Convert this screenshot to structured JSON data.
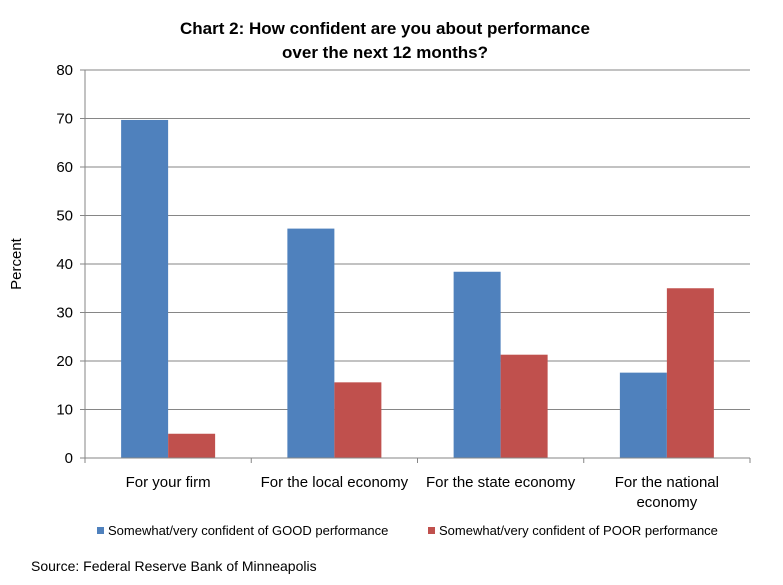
{
  "chart_data": {
    "type": "bar",
    "title_lines": [
      "Chart 2: How confident are you about performance",
      "over the next 12 months?"
    ],
    "xlabel": "",
    "ylabel": "Percent",
    "ylim": [
      0,
      80
    ],
    "yticks": [
      0,
      10,
      20,
      30,
      40,
      50,
      60,
      70,
      80
    ],
    "grid": true,
    "legend_position": "bottom",
    "categories": [
      [
        "For your firm"
      ],
      [
        "For the local economy"
      ],
      [
        "For the state economy"
      ],
      [
        "For the national",
        "economy"
      ]
    ],
    "series": [
      {
        "name": "Somewhat/very confident of GOOD performance",
        "color": "#4F81BD",
        "values": [
          69.7,
          47.3,
          38.4,
          17.6
        ]
      },
      {
        "name": "Somewhat/very confident of POOR performance",
        "color": "#C0504D",
        "values": [
          5.0,
          15.6,
          21.3,
          35.0
        ]
      }
    ]
  },
  "source": "Source: Federal Reserve Bank of Minneapolis"
}
